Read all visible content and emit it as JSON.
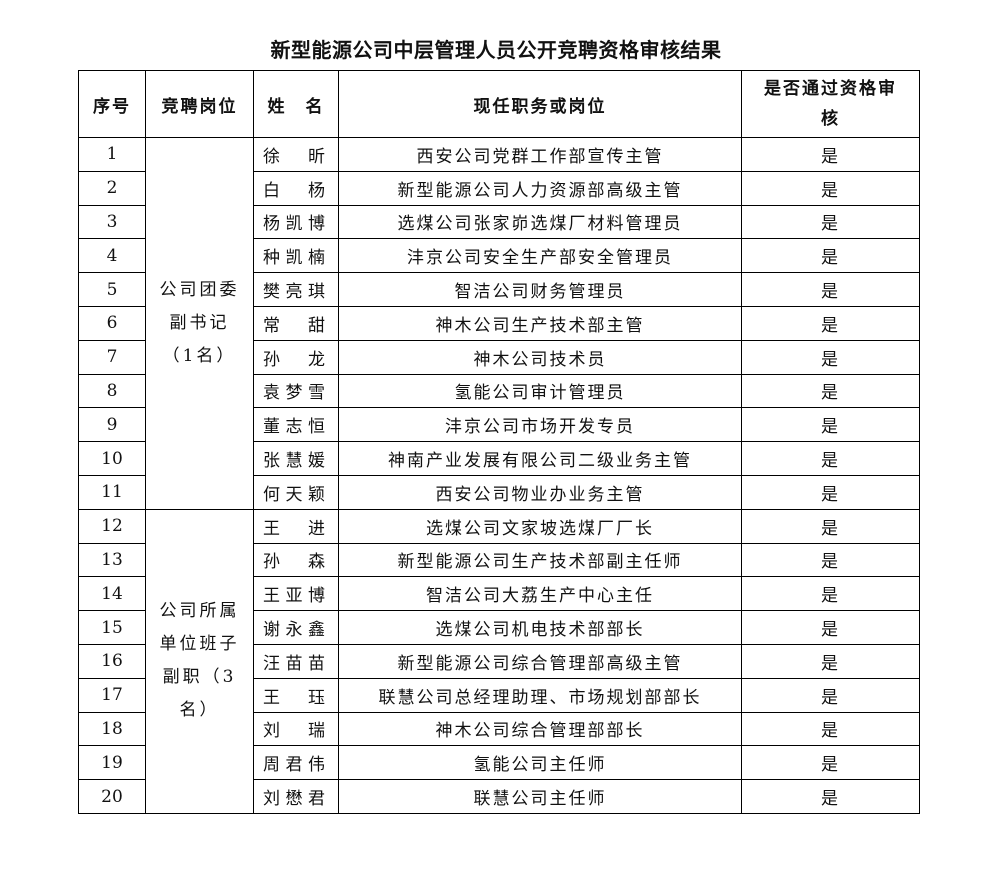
{
  "title": "新型能源公司中层管理人员公开竞聘资格审核结果",
  "headers": {
    "index": "序号",
    "position": "竞聘岗位",
    "name": "姓　名",
    "current": "现任职务或岗位",
    "passed": "是否通过资格审核"
  },
  "groups": [
    {
      "label": "公司团委副书记（1名）"
    },
    {
      "label": "公司所属单位班子副职（3名）"
    }
  ],
  "rows": [
    {
      "no": "1",
      "name": "徐昕",
      "current": "西安公司党群工作部宣传主管",
      "passed": "是"
    },
    {
      "no": "2",
      "name": "白杨",
      "current": "新型能源公司人力资源部高级主管",
      "passed": "是"
    },
    {
      "no": "3",
      "name": "杨凯博",
      "current": "选煤公司张家峁选煤厂材料管理员",
      "passed": "是"
    },
    {
      "no": "4",
      "name": "种凯楠",
      "current": "沣京公司安全生产部安全管理员",
      "passed": "是"
    },
    {
      "no": "5",
      "name": "樊亮琪",
      "current": "智洁公司财务管理员",
      "passed": "是"
    },
    {
      "no": "6",
      "name": "常甜",
      "current": "神木公司生产技术部主管",
      "passed": "是"
    },
    {
      "no": "7",
      "name": "孙龙",
      "current": "神木公司技术员",
      "passed": "是"
    },
    {
      "no": "8",
      "name": "袁梦雪",
      "current": "氢能公司审计管理员",
      "passed": "是"
    },
    {
      "no": "9",
      "name": "董志恒",
      "current": "沣京公司市场开发专员",
      "passed": "是"
    },
    {
      "no": "10",
      "name": "张慧媛",
      "current": "神南产业发展有限公司二级业务主管",
      "passed": "是"
    },
    {
      "no": "11",
      "name": "何天颖",
      "current": "西安公司物业办业务主管",
      "passed": "是"
    },
    {
      "no": "12",
      "name": "王进",
      "current": "选煤公司文家坡选煤厂厂长",
      "passed": "是"
    },
    {
      "no": "13",
      "name": "孙森",
      "current": "新型能源公司生产技术部副主任师",
      "passed": "是"
    },
    {
      "no": "14",
      "name": "王亚博",
      "current": "智洁公司大荔生产中心主任",
      "passed": "是"
    },
    {
      "no": "15",
      "name": "谢永鑫",
      "current": "选煤公司机电技术部部长",
      "passed": "是"
    },
    {
      "no": "16",
      "name": "汪苗苗",
      "current": "新型能源公司综合管理部高级主管",
      "passed": "是"
    },
    {
      "no": "17",
      "name": "王珏",
      "current": "联慧公司总经理助理、市场规划部部长",
      "passed": "是"
    },
    {
      "no": "18",
      "name": "刘瑞",
      "current": "神木公司综合管理部部长",
      "passed": "是"
    },
    {
      "no": "19",
      "name": "周君伟",
      "current": "氢能公司主任师",
      "passed": "是"
    },
    {
      "no": "20",
      "name": "刘懋君",
      "current": "联慧公司主任师",
      "passed": "是"
    }
  ]
}
